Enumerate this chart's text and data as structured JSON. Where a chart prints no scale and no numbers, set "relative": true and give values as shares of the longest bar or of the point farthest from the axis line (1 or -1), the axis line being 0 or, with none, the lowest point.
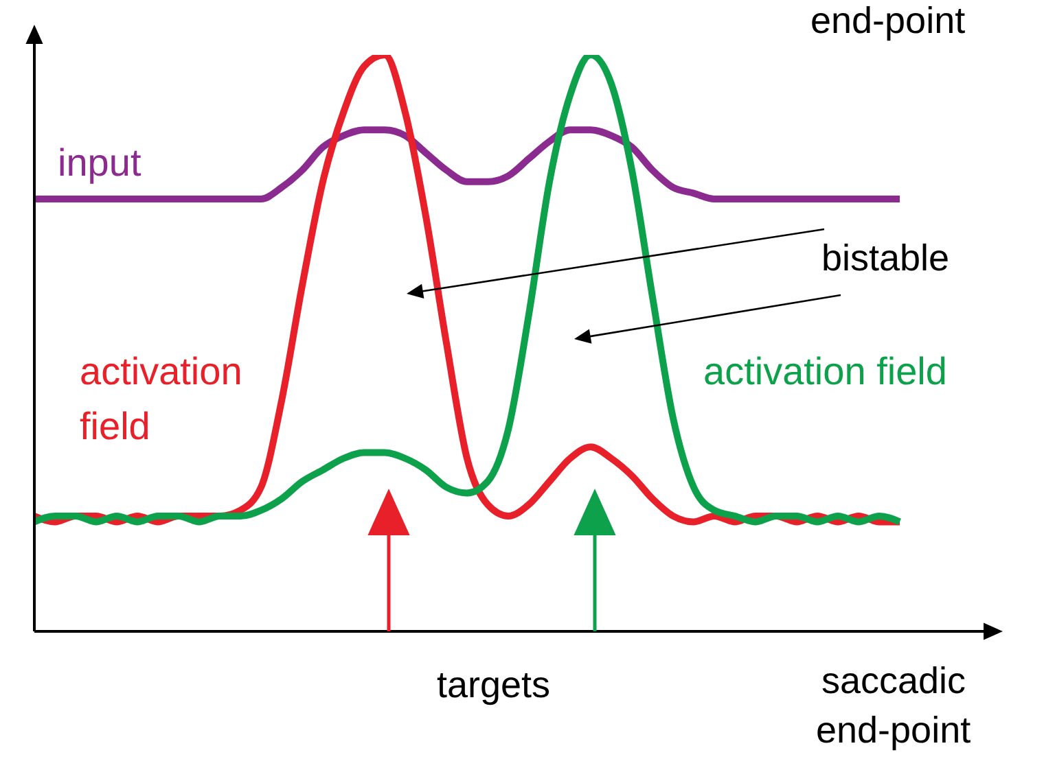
{
  "chart_data": {
    "type": "line",
    "relative": true,
    "xlabel": "saccadic end-point",
    "marker": "none",
    "line_style": "solid",
    "categories": [
      null,
      null,
      null,
      null,
      null,
      null,
      null,
      null,
      null,
      null,
      null,
      null,
      null,
      null,
      null,
      null,
      null,
      null,
      null,
      null,
      null,
      null,
      null,
      null,
      null,
      null,
      null,
      null,
      null,
      null,
      null,
      null,
      null,
      null,
      null,
      null,
      null,
      null,
      null,
      null,
      null,
      null,
      null,
      null,
      null,
      null,
      null
    ],
    "series": [
      {
        "name": "input",
        "color": "#8b2a8f",
        "values": [
          0.75,
          0.75,
          0.75,
          0.75,
          0.75,
          0.75,
          0.75,
          0.75,
          0.75,
          0.75,
          0.75,
          0.75,
          0.77,
          0.8,
          0.84,
          0.86,
          0.87,
          0.87,
          0.86,
          0.83,
          0.8,
          0.78,
          0.78,
          0.79,
          0.82,
          0.85,
          0.87,
          0.87,
          0.86,
          0.84,
          0.8,
          0.77,
          0.76,
          0.75,
          0.75,
          0.75,
          0.75,
          0.75,
          0.75,
          0.75,
          0.75,
          0.75,
          0.75,
          null,
          null,
          null,
          null
        ]
      },
      {
        "name": "activation field",
        "color": "#e8202a",
        "values": [
          0.2,
          0.19,
          0.2,
          0.2,
          0.19,
          0.2,
          0.19,
          0.2,
          0.2,
          0.2,
          0.21,
          0.25,
          0.4,
          0.6,
          0.78,
          0.9,
          0.98,
          1,
          0.9,
          0.72,
          0.5,
          0.3,
          0.22,
          0.2,
          0.22,
          0.26,
          0.3,
          0.32,
          0.3,
          0.27,
          0.23,
          0.2,
          0.19,
          0.2,
          0.19,
          0.2,
          0.2,
          0.19,
          0.2,
          0.19,
          0.2,
          0.19,
          0.19,
          null,
          null,
          null,
          null
        ]
      },
      {
        "name": "activation field",
        "color": "#0ea14b",
        "values": [
          0.19,
          0.2,
          0.2,
          0.19,
          0.2,
          0.19,
          0.2,
          0.2,
          0.19,
          0.2,
          0.2,
          0.21,
          0.23,
          0.26,
          0.28,
          0.3,
          0.31,
          0.31,
          0.3,
          0.28,
          0.25,
          0.24,
          0.26,
          0.35,
          0.55,
          0.78,
          0.93,
          1,
          0.95,
          0.8,
          0.58,
          0.37,
          0.25,
          0.21,
          0.2,
          0.19,
          0.2,
          0.2,
          0.19,
          0.2,
          0.19,
          0.2,
          0.19,
          null,
          null,
          null,
          null
        ]
      }
    ],
    "annotations": [
      "bistable",
      "targets",
      "end-point"
    ]
  }
}
